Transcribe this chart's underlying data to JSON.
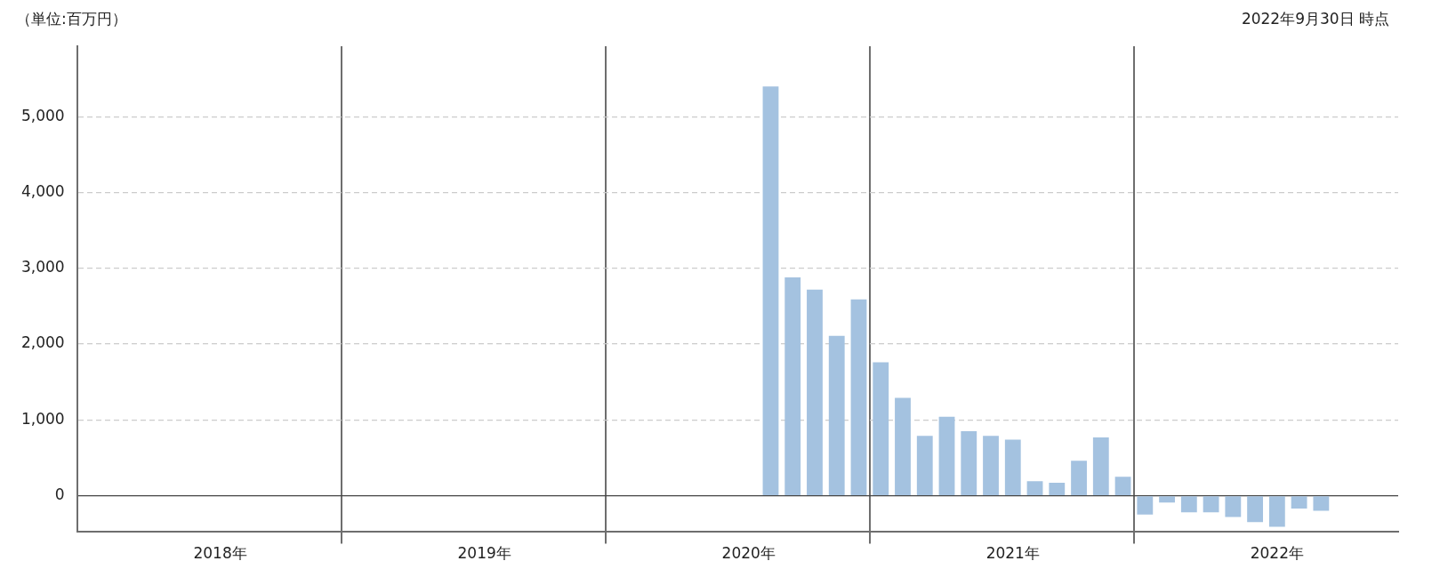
{
  "chart_data": {
    "type": "bar",
    "ylabel": "（単位:百万円）",
    "annotations": [
      "2022年9月30日 時点"
    ],
    "categories": [
      null,
      null,
      null,
      null,
      null,
      null,
      "2018年",
      null,
      null,
      null,
      null,
      null,
      null,
      null,
      null,
      null,
      null,
      null,
      "2019年",
      null,
      null,
      null,
      null,
      null,
      null,
      null,
      null,
      null,
      null,
      null,
      "2020年",
      null,
      null,
      null,
      null,
      null,
      null,
      null,
      null,
      null,
      null,
      null,
      "2021年",
      null,
      null,
      null,
      null,
      null,
      null,
      null,
      null,
      null,
      null,
      null,
      "2022年",
      null,
      null,
      null,
      null,
      null
    ],
    "values": [
      null,
      null,
      null,
      null,
      null,
      null,
      null,
      null,
      null,
      null,
      null,
      null,
      null,
      null,
      null,
      null,
      null,
      null,
      null,
      null,
      null,
      null,
      null,
      null,
      null,
      null,
      null,
      null,
      null,
      null,
      null,
      5400,
      2880,
      2720,
      2110,
      2590,
      1760,
      1290,
      790,
      1040,
      850,
      790,
      740,
      190,
      170,
      460,
      770,
      250,
      -250,
      -90,
      -220,
      -220,
      -280,
      -350,
      -410,
      -170,
      -200,
      null,
      null,
      null
    ],
    "color": "#a4c2e0",
    "ylim": [
      -470,
      5930
    ],
    "yticks": [
      0,
      {
        "value": 1000,
        "label": "1,000"
      },
      {
        "value": 2000,
        "label": "2,000"
      },
      {
        "value": 3000,
        "label": "3,000"
      },
      {
        "value": 4000,
        "label": "4,000"
      },
      {
        "value": 5000,
        "label": "5,000"
      }
    ],
    "grid": true
  }
}
